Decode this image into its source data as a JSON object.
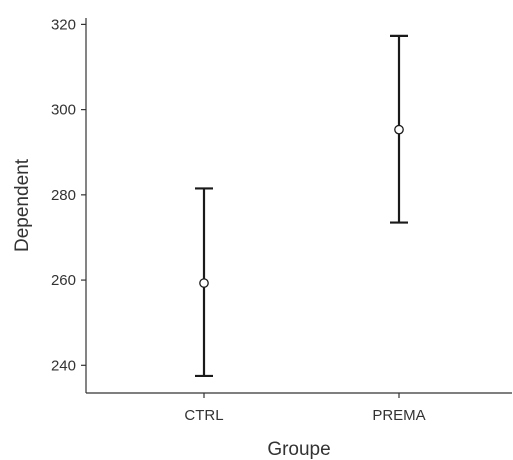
{
  "chart_data": {
    "type": "scatter",
    "title": "",
    "xlabel": "Groupe",
    "ylabel": "Dependent",
    "categories": [
      "CTRL",
      "PREMA"
    ],
    "points": [
      {
        "category": "CTRL",
        "mean": 259.3,
        "lower": 237.5,
        "upper": 281.5
      },
      {
        "category": "PREMA",
        "mean": 295.3,
        "lower": 273.5,
        "upper": 317.3
      }
    ],
    "ylim": [
      233.5,
      321.5
    ],
    "yticks": [
      240,
      260,
      280,
      300,
      320
    ],
    "grid": false,
    "legend": "none"
  }
}
